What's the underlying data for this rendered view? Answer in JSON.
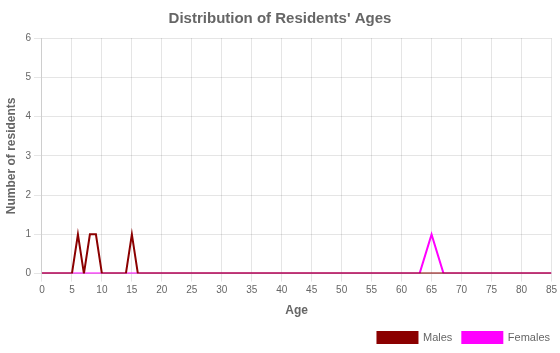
{
  "chart_data": {
    "type": "line",
    "title": "Distribution of Residents' Ages",
    "xlabel": "Age",
    "ylabel": "Number of residents",
    "xlim": [
      0,
      85
    ],
    "ylim": [
      0,
      6
    ],
    "xticks": [
      0,
      5,
      10,
      15,
      20,
      25,
      30,
      35,
      40,
      45,
      50,
      55,
      60,
      65,
      70,
      75,
      80,
      85
    ],
    "yticks": [
      0,
      1,
      2,
      3,
      4,
      5,
      6
    ],
    "grid": true,
    "legend": "lower right",
    "series": [
      {
        "name": "Males",
        "color": "#8B0000",
        "x": [
          0,
          5,
          6,
          7,
          8,
          9,
          10,
          14,
          15,
          16,
          17,
          85
        ],
        "values": [
          0,
          0,
          1,
          0,
          1,
          1,
          0,
          0,
          1,
          0,
          0,
          0
        ]
      },
      {
        "name": "Females",
        "color": "#FF00FF",
        "x": [
          0,
          60,
          63,
          65,
          67,
          70,
          85
        ],
        "values": [
          0,
          0,
          0,
          1,
          0,
          0,
          0
        ]
      }
    ]
  }
}
